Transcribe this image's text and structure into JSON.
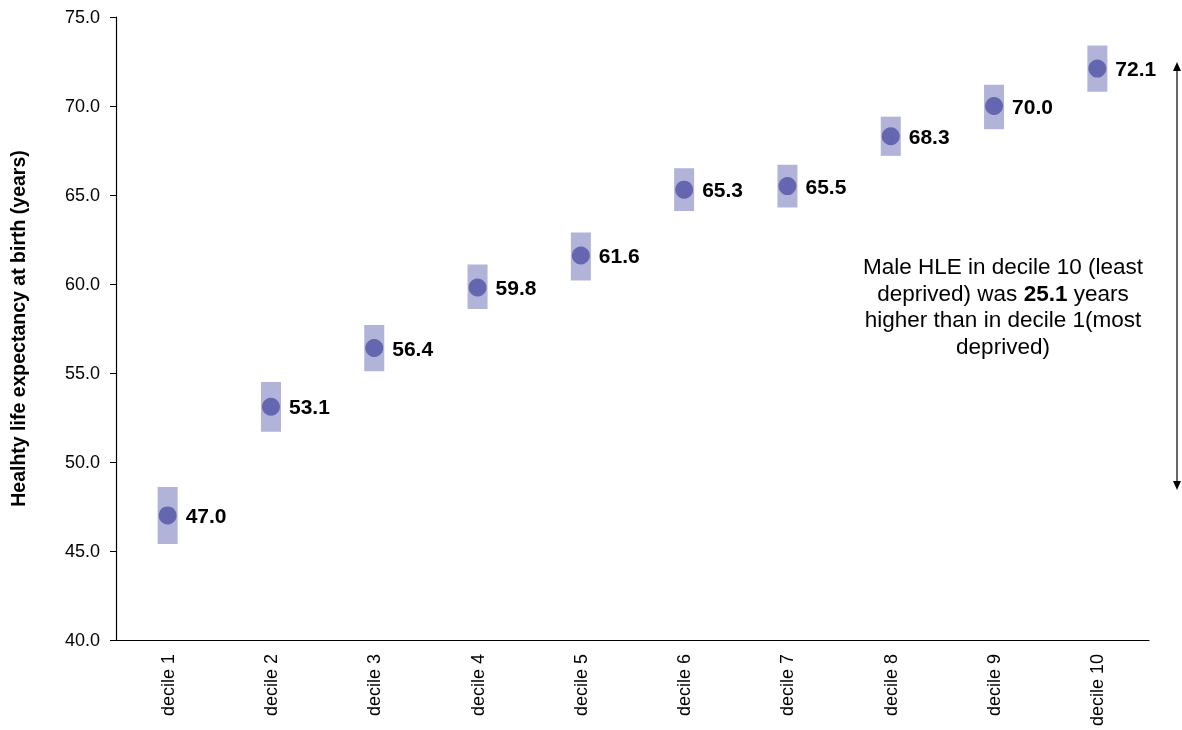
{
  "chart_data": {
    "type": "scatter",
    "ylabel": "Healhty life expectancy at birth (years)",
    "categories": [
      "decile 1",
      "decile 2",
      "decile 3",
      "decile 4",
      "decile 5",
      "decile 6",
      "decile 7",
      "decile 8",
      "decile 9",
      "decile 10"
    ],
    "values": [
      47.0,
      53.1,
      56.4,
      59.8,
      61.6,
      65.3,
      65.5,
      68.3,
      70.0,
      72.1
    ],
    "value_labels": [
      "47.0",
      "53.1",
      "56.4",
      "59.8",
      "61.6",
      "65.3",
      "65.5",
      "68.3",
      "70.0",
      "72.1"
    ],
    "errors": [
      [
        45.4,
        48.6
      ],
      [
        51.7,
        54.5
      ],
      [
        55.1,
        57.7
      ],
      [
        58.6,
        61.1
      ],
      [
        60.2,
        62.9
      ],
      [
        64.1,
        66.5
      ],
      [
        64.3,
        66.7
      ],
      [
        67.2,
        69.4
      ],
      [
        68.7,
        71.2
      ],
      [
        70.8,
        73.4
      ]
    ],
    "color": "#6466b0",
    "marker": "circle",
    "grid": false,
    "ylim": [
      40,
      75
    ],
    "yticks": [
      {
        "value": 40,
        "label": "40.0"
      },
      {
        "value": 45,
        "label": "45.0"
      },
      {
        "value": 50,
        "label": "50.0"
      },
      {
        "value": 55,
        "label": "55.0"
      },
      {
        "value": 60,
        "label": "60.0"
      },
      {
        "value": 65,
        "label": "65.0"
      },
      {
        "value": 70,
        "label": "70.0"
      },
      {
        "value": 75,
        "label": "75.0"
      }
    ],
    "annotations": [
      "Male HLE in decile 10 (least deprived) was 25.1 years higher than in decile 1(most deprived)"
    ]
  }
}
